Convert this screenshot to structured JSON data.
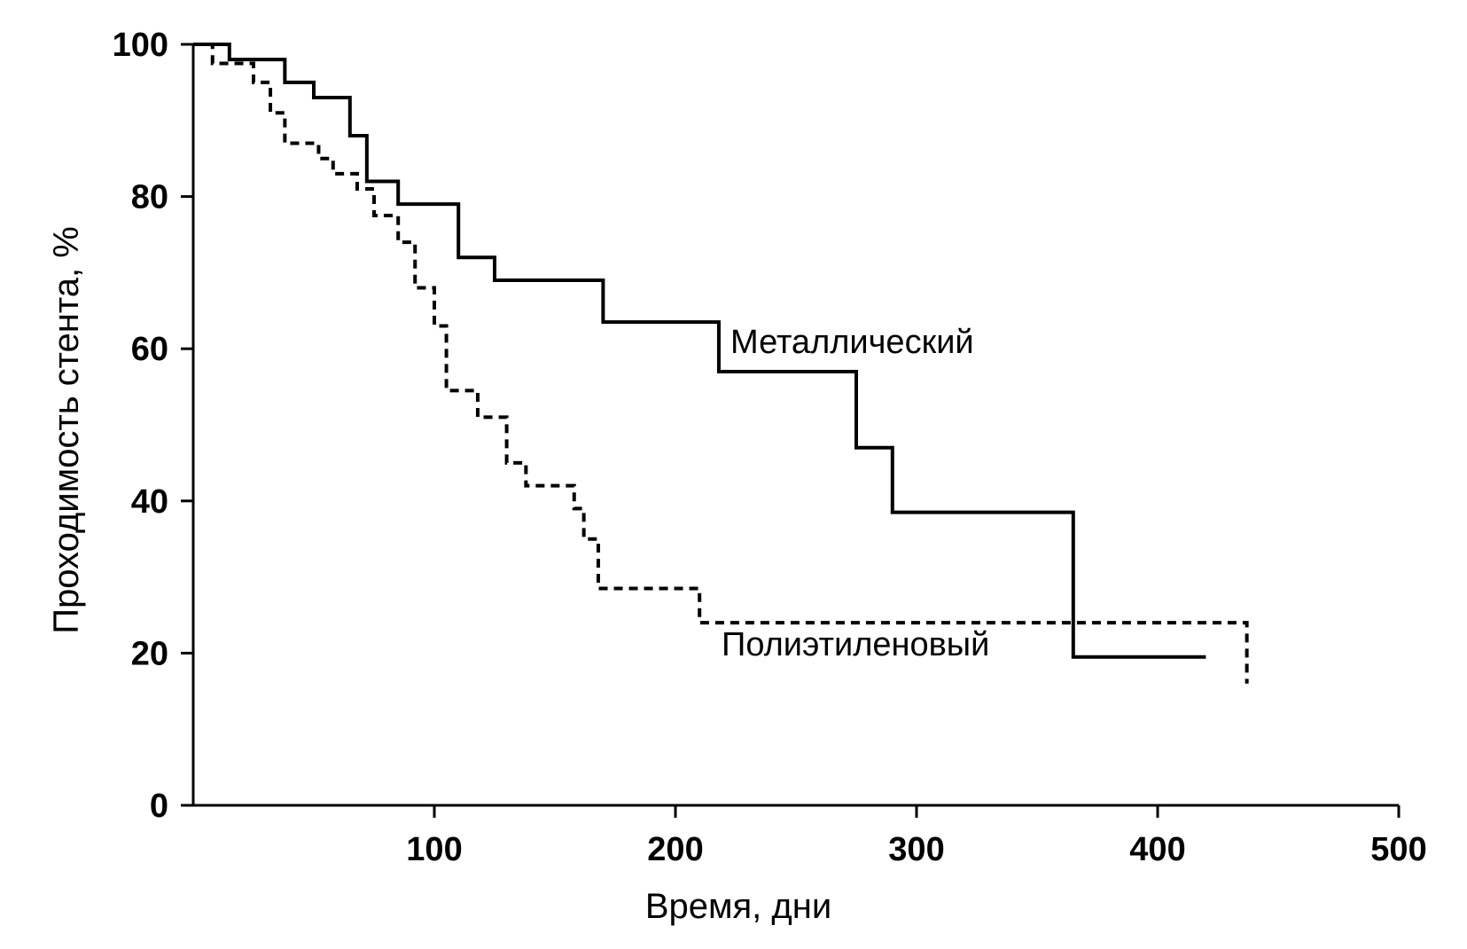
{
  "chart_data": {
    "type": "line",
    "title": "",
    "xlabel": "Время,  дни",
    "ylabel": "Проходимость стента,  %",
    "xlim": [
      0,
      500
    ],
    "ylim": [
      0,
      100
    ],
    "x_ticks": [
      100,
      200,
      300,
      400,
      500
    ],
    "y_ticks": [
      0,
      20,
      40,
      60,
      80,
      100
    ],
    "grid": false,
    "step": true,
    "series": [
      {
        "name": "Металлический",
        "line_style": "solid",
        "color": "#000000",
        "x": [
          0,
          15,
          38,
          50,
          65,
          72,
          85,
          110,
          125,
          170,
          218,
          275,
          290,
          365,
          420
        ],
        "y": [
          100,
          98,
          95,
          93,
          88,
          82,
          79,
          72,
          69,
          63.5,
          57,
          47,
          38.5,
          19.5,
          19.5
        ]
      },
      {
        "name": "Полиэтиленовый",
        "line_style": "dashed",
        "color": "#000000",
        "x": [
          0,
          8,
          25,
          32,
          38,
          52,
          58,
          68,
          75,
          85,
          92,
          100,
          105,
          118,
          130,
          138,
          158,
          162,
          168,
          210,
          437
        ],
        "y": [
          100,
          97.5,
          95,
          91,
          87,
          85,
          83,
          81,
          77.5,
          74,
          68,
          63,
          54.5,
          51,
          45,
          42,
          39,
          35,
          28.5,
          24,
          16
        ]
      }
    ]
  }
}
